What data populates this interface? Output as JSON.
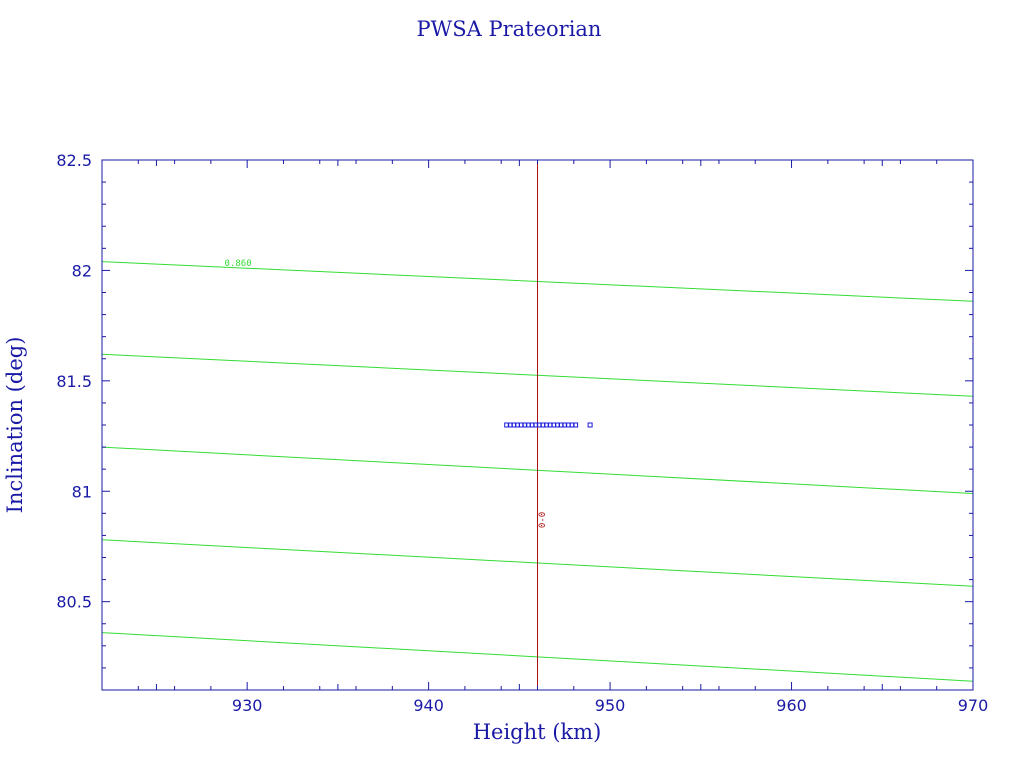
{
  "chart_data": {
    "type": "line",
    "title": "PWSA Prateorian",
    "xlabel": "Height (km)",
    "ylabel": "Inclination (deg)",
    "xlim": [
      922,
      970
    ],
    "ylim": [
      80.1,
      82.5
    ],
    "xticks": [
      "930",
      "940",
      "950",
      "960",
      "970"
    ],
    "xtick_values": [
      930,
      940,
      950,
      960,
      970
    ],
    "yticks": [
      "80.5",
      "81",
      "81.5",
      "82",
      "82.5"
    ],
    "ytick_values": [
      80.5,
      81.0,
      81.5,
      82.0,
      82.5
    ],
    "grid": false,
    "series": [
      {
        "x": [
          922,
          970
        ],
        "y": [
          82.04,
          81.86
        ]
      },
      {
        "x": [
          922,
          970
        ],
        "y": [
          81.62,
          81.43
        ]
      },
      {
        "x": [
          922,
          970
        ],
        "y": [
          81.2,
          80.99
        ]
      },
      {
        "x": [
          922,
          970
        ],
        "y": [
          80.78,
          80.57
        ]
      },
      {
        "x": [
          922,
          970
        ],
        "y": [
          80.36,
          80.14
        ]
      }
    ],
    "vline": {
      "x": 946.0
    },
    "annotations": [
      {
        "text": "0.860",
        "x": 929.5,
        "y": 82.02
      },
      {
        "text": "0-0",
        "x": 946.4,
        "y": 80.87
      }
    ],
    "scatter": {
      "x": [
        944.3,
        944.5,
        944.7,
        944.9,
        945.1,
        945.3,
        945.5,
        945.7,
        945.9,
        946.1,
        946.3,
        946.5,
        946.7,
        946.9,
        947.1,
        947.3,
        947.5,
        947.7,
        947.9,
        948.1,
        948.9
      ],
      "y": [
        81.3,
        81.3,
        81.3,
        81.3,
        81.3,
        81.3,
        81.3,
        81.3,
        81.3,
        81.3,
        81.3,
        81.3,
        81.3,
        81.3,
        81.3,
        81.3,
        81.3,
        81.3,
        81.3,
        81.3,
        81.3
      ]
    },
    "colors": {
      "axes": "#1a1aa6",
      "lines": "#33dd33",
      "vline": "#aa1111",
      "points": "#1a1add",
      "title": "#1a1aa6"
    }
  }
}
